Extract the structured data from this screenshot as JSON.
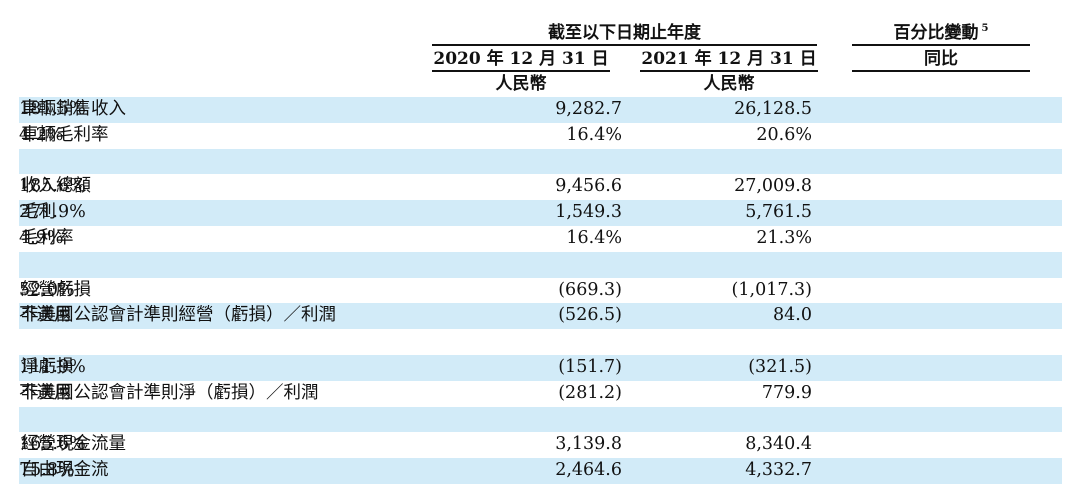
{
  "header": {
    "period_title": "截至以下日期止年度",
    "change_title": "百分比變動",
    "change_footnote": "5",
    "col_2020": "2020 年 12 月 31 日",
    "col_2021": "2021 年 12 月 31 日",
    "col_yoy": "同比",
    "currency_2020": "人民幣",
    "currency_2021": "人民幣"
  },
  "rows": [
    {
      "label": "車輛銷售收入",
      "v2020": "9,282.7",
      "v2021": "26,128.5",
      "yoy": "181.5%",
      "shaded": true
    },
    {
      "label": "車輛毛利率",
      "v2020": "16.4%",
      "v2021": "20.6%",
      "yoy": "4.2%",
      "shaded": false
    },
    {
      "label": "",
      "v2020": "",
      "v2021": "",
      "yoy": "",
      "shaded": true
    },
    {
      "label": "收入總額",
      "v2020": "9,456.6",
      "v2021": "27,009.8",
      "yoy": "185.6%",
      "shaded": false
    },
    {
      "label": "毛利",
      "v2020": "1,549.3",
      "v2021": "5,761.5",
      "yoy": "271.9%",
      "shaded": true
    },
    {
      "label": "毛利率",
      "v2020": "16.4%",
      "v2021": "21.3%",
      "yoy": "4.9%",
      "shaded": false
    },
    {
      "label": "",
      "v2020": "",
      "v2021": "",
      "yoy": "",
      "shaded": true
    },
    {
      "label": "經營虧損",
      "v2020": "(669.3)",
      "v2021": "(1,017.3)",
      "yoy": "52.0%",
      "shaded": false
    },
    {
      "label": "非美國公認會計準則經營（虧損）／利潤",
      "v2020": "(526.5)",
      "v2021": "84.0",
      "yoy": "不適用",
      "shaded": true
    },
    {
      "label": "",
      "v2020": "",
      "v2021": "",
      "yoy": "",
      "shaded": false
    },
    {
      "label": "淨虧損",
      "v2020": "(151.7)",
      "v2021": "(321.5)",
      "yoy": "111.9%",
      "shaded": true
    },
    {
      "label": "非美國公認會計準則淨（虧損）／利潤",
      "v2020": "(281.2)",
      "v2021": "779.9",
      "yoy": "不適用",
      "shaded": false
    },
    {
      "label": "",
      "v2020": "",
      "v2021": "",
      "yoy": "",
      "shaded": true
    },
    {
      "label": "經營現金流量",
      "v2020": "3,139.8",
      "v2021": "8,340.4",
      "yoy": "165.6%",
      "shaded": false
    },
    {
      "label": "自由現金流",
      "v2020": "2,464.6",
      "v2021": "4,332.7",
      "yoy": "75.8%",
      "shaded": true
    }
  ]
}
